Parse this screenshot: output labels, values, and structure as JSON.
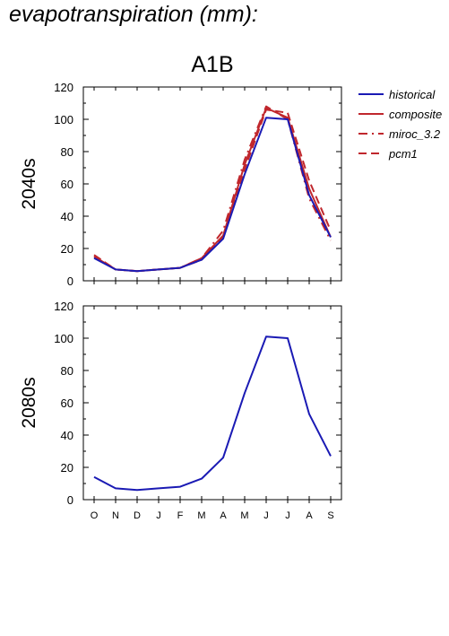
{
  "page_title": "evapotranspiration (mm):",
  "scenario": "A1B",
  "legend": [
    {
      "label": "historical",
      "color": "#1a1ab4",
      "dash": "solid"
    },
    {
      "label": "composite",
      "color": "#c0272d",
      "dash": "solid"
    },
    {
      "label": "miroc_3.2",
      "color": "#c0272d",
      "dash": "dashdot"
    },
    {
      "label": "pcm1",
      "color": "#c0272d",
      "dash": "dashed"
    }
  ],
  "chart_data": [
    {
      "type": "line",
      "title": "2040s",
      "x": [
        "O",
        "N",
        "D",
        "J",
        "F",
        "M",
        "A",
        "M",
        "J",
        "J",
        "A",
        "S"
      ],
      "ylim": [
        0,
        120
      ],
      "yticks": [
        0,
        20,
        40,
        60,
        80,
        100,
        120
      ],
      "series": [
        {
          "name": "historical",
          "values": [
            14,
            7,
            6,
            7,
            8,
            13,
            26,
            66,
            101,
            100,
            53,
            27
          ]
        },
        {
          "name": "composite",
          "values": [
            15,
            7,
            6,
            7,
            8,
            14,
            28,
            72,
            107,
            101,
            57,
            27
          ]
        },
        {
          "name": "miroc_3.2",
          "values": [
            15,
            7,
            6,
            7,
            8,
            14,
            31,
            75,
            108,
            100,
            51,
            25
          ]
        },
        {
          "name": "pcm1",
          "values": [
            16,
            7,
            6,
            7,
            8,
            13,
            27,
            69,
            106,
            104,
            62,
            31
          ]
        }
      ]
    },
    {
      "type": "line",
      "title": "2080s",
      "x": [
        "O",
        "N",
        "D",
        "J",
        "F",
        "M",
        "A",
        "M",
        "J",
        "J",
        "A",
        "S"
      ],
      "ylim": [
        0,
        120
      ],
      "yticks": [
        0,
        20,
        40,
        60,
        80,
        100,
        120
      ],
      "series": [
        {
          "name": "historical",
          "values": [
            14,
            7,
            6,
            7,
            8,
            13,
            26,
            66,
            101,
            100,
            53,
            27
          ]
        }
      ]
    }
  ]
}
